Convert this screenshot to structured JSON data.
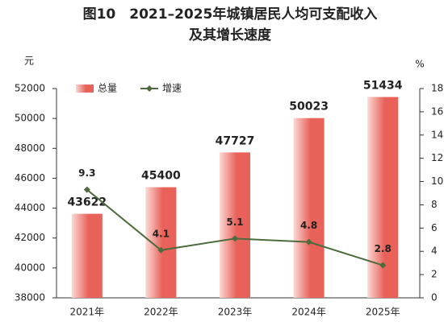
{
  "chart_data": {
    "type": "bar",
    "title": [
      "图10　2021–2025年城镇居民人均可支配收入",
      "及其增长速度"
    ],
    "y_label": "元",
    "y2_label": "%",
    "categories": [
      "2021年",
      "2022年",
      "2023年",
      "2024年",
      "2025年"
    ],
    "series": [
      {
        "name": "总量",
        "type": "bar",
        "color": "#e8625a",
        "values": [
          43622,
          45400,
          47727,
          50023,
          51434
        ]
      },
      {
        "name": "增速",
        "type": "line",
        "axis": "y2",
        "color": "#4d6b3c",
        "values": [
          9.3,
          4.1,
          5.1,
          4.8,
          2.8
        ]
      }
    ],
    "ylim": [
      38000,
      52000
    ],
    "yticks": [
      38000,
      40000,
      42000,
      44000,
      46000,
      48000,
      50000,
      52000
    ],
    "y2lim": [
      0,
      18
    ],
    "y2ticks": [
      0,
      2,
      4,
      6,
      8,
      10,
      12,
      14,
      16,
      18
    ],
    "legend": "top-left"
  }
}
